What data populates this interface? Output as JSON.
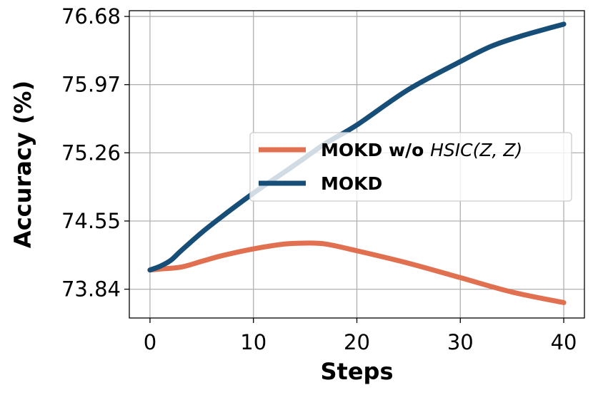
{
  "chart_data": {
    "type": "line",
    "xlabel": "Steps",
    "ylabel": "Accuracy (%)",
    "xlim": [
      -2,
      42
    ],
    "ylim": [
      73.54,
      76.74
    ],
    "xticks": [
      0,
      10,
      20,
      30,
      40
    ],
    "yticks": [
      73.84,
      74.55,
      75.26,
      75.97,
      76.68
    ],
    "yticks_labels": [
      "73.84",
      "74.55",
      "75.26",
      "75.97",
      "76.68"
    ],
    "xticks_labels": [
      "0",
      "10",
      "20",
      "30",
      "40"
    ],
    "grid": true,
    "legend_position": "center-right",
    "series": [
      {
        "name": "MOKD w/o HSIC(Z, Z)",
        "name_plain": "MOKD w/o ",
        "name_math": "HSIC(Z, Z)",
        "color": "#e07050",
        "x": [
          0,
          1,
          3,
          5,
          7,
          10,
          13,
          15,
          17,
          20,
          25,
          30,
          35,
          40
        ],
        "y": [
          74.04,
          74.05,
          74.07,
          74.13,
          74.19,
          74.26,
          74.31,
          74.32,
          74.31,
          74.24,
          74.11,
          73.96,
          73.81,
          73.7
        ]
      },
      {
        "name": "MOKD",
        "color": "#174e78",
        "x": [
          0,
          1,
          2,
          3,
          5,
          7,
          10,
          13,
          15,
          17,
          20,
          25,
          30,
          33,
          36,
          40
        ],
        "y": [
          74.04,
          74.08,
          74.14,
          74.24,
          74.43,
          74.6,
          74.84,
          75.06,
          75.21,
          75.36,
          75.55,
          75.92,
          76.21,
          76.37,
          76.48,
          76.6
        ]
      }
    ]
  }
}
